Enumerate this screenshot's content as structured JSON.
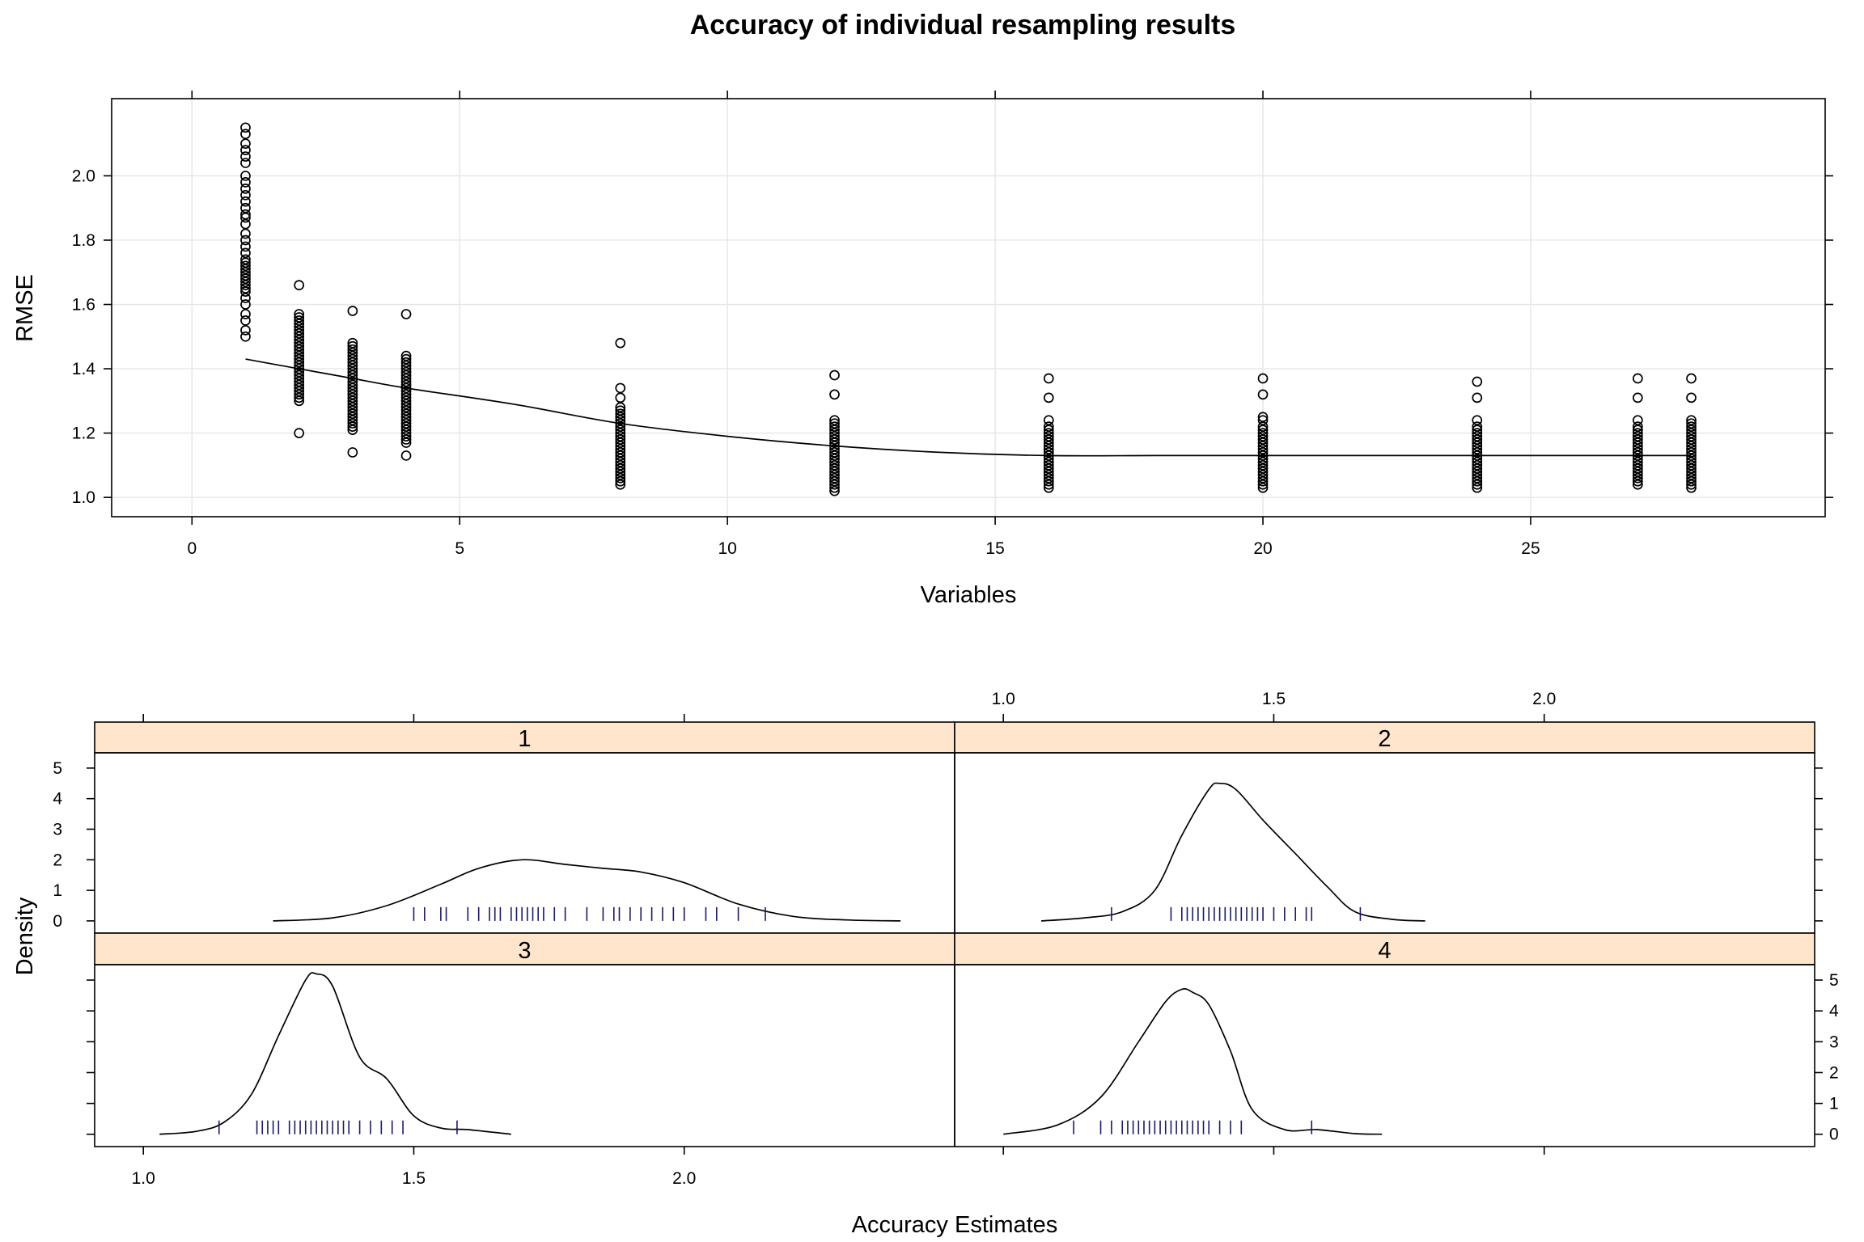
{
  "chart_data": [
    {
      "type": "scatter",
      "title": "Accuracy of individual resampling results",
      "xlabel": "Variables",
      "ylabel": "RMSE",
      "xlim": [
        -1.5,
        30.5
      ],
      "ylim": [
        0.94,
        2.24
      ],
      "xticks": [
        0,
        5,
        10,
        15,
        20,
        25
      ],
      "yticks": [
        1.0,
        1.2,
        1.4,
        1.6,
        1.8,
        2.0
      ],
      "ytick_labels": [
        "1.0",
        "1.2",
        "1.4",
        "1.6",
        "1.8",
        "2.0"
      ],
      "grid": true,
      "series": [
        {
          "x": 1,
          "y": [
            2.15,
            2.13,
            2.1,
            2.08,
            2.06,
            2.04,
            2.0,
            1.98,
            1.96,
            1.94,
            1.92,
            1.9,
            1.88,
            1.87,
            1.85,
            1.82,
            1.8,
            1.78,
            1.76,
            1.74,
            1.73,
            1.72,
            1.71,
            1.7,
            1.69,
            1.68,
            1.67,
            1.66,
            1.65,
            1.64,
            1.62,
            1.6,
            1.57,
            1.55,
            1.52,
            1.5
          ]
        },
        {
          "x": 2,
          "y": [
            1.66,
            1.57,
            1.56,
            1.55,
            1.54,
            1.53,
            1.52,
            1.51,
            1.5,
            1.49,
            1.48,
            1.47,
            1.46,
            1.45,
            1.44,
            1.43,
            1.42,
            1.41,
            1.4,
            1.39,
            1.38,
            1.37,
            1.36,
            1.35,
            1.34,
            1.33,
            1.32,
            1.31,
            1.3,
            1.2
          ]
        },
        {
          "x": 3,
          "y": [
            1.58,
            1.48,
            1.47,
            1.46,
            1.45,
            1.44,
            1.43,
            1.42,
            1.41,
            1.4,
            1.39,
            1.38,
            1.37,
            1.36,
            1.35,
            1.34,
            1.33,
            1.32,
            1.31,
            1.3,
            1.29,
            1.28,
            1.27,
            1.26,
            1.25,
            1.24,
            1.23,
            1.22,
            1.21,
            1.14
          ]
        },
        {
          "x": 4,
          "y": [
            1.57,
            1.44,
            1.43,
            1.42,
            1.41,
            1.4,
            1.39,
            1.38,
            1.37,
            1.36,
            1.35,
            1.34,
            1.33,
            1.32,
            1.31,
            1.3,
            1.29,
            1.28,
            1.27,
            1.26,
            1.25,
            1.24,
            1.23,
            1.22,
            1.21,
            1.2,
            1.19,
            1.18,
            1.17,
            1.13
          ]
        },
        {
          "x": 8,
          "y": [
            1.48,
            1.34,
            1.31,
            1.28,
            1.27,
            1.26,
            1.25,
            1.24,
            1.23,
            1.22,
            1.21,
            1.2,
            1.19,
            1.18,
            1.17,
            1.16,
            1.15,
            1.14,
            1.13,
            1.12,
            1.11,
            1.1,
            1.09,
            1.08,
            1.07,
            1.06,
            1.05,
            1.04
          ]
        },
        {
          "x": 12,
          "y": [
            1.38,
            1.32,
            1.24,
            1.23,
            1.22,
            1.21,
            1.2,
            1.19,
            1.18,
            1.17,
            1.16,
            1.15,
            1.14,
            1.13,
            1.12,
            1.11,
            1.1,
            1.09,
            1.08,
            1.07,
            1.06,
            1.05,
            1.04,
            1.03,
            1.02
          ]
        },
        {
          "x": 16,
          "y": [
            1.37,
            1.31,
            1.24,
            1.22,
            1.21,
            1.2,
            1.19,
            1.18,
            1.17,
            1.16,
            1.15,
            1.14,
            1.13,
            1.12,
            1.11,
            1.1,
            1.09,
            1.08,
            1.07,
            1.06,
            1.05,
            1.04,
            1.03
          ]
        },
        {
          "x": 20,
          "y": [
            1.37,
            1.32,
            1.25,
            1.24,
            1.22,
            1.21,
            1.2,
            1.19,
            1.18,
            1.17,
            1.16,
            1.15,
            1.14,
            1.13,
            1.12,
            1.11,
            1.1,
            1.09,
            1.08,
            1.07,
            1.06,
            1.05,
            1.04,
            1.03
          ]
        },
        {
          "x": 24,
          "y": [
            1.36,
            1.31,
            1.24,
            1.22,
            1.21,
            1.2,
            1.19,
            1.18,
            1.17,
            1.16,
            1.15,
            1.14,
            1.13,
            1.12,
            1.11,
            1.1,
            1.09,
            1.08,
            1.07,
            1.06,
            1.05,
            1.04,
            1.03
          ]
        },
        {
          "x": 27,
          "y": [
            1.37,
            1.31,
            1.24,
            1.22,
            1.21,
            1.2,
            1.19,
            1.18,
            1.17,
            1.16,
            1.15,
            1.14,
            1.13,
            1.12,
            1.11,
            1.1,
            1.09,
            1.08,
            1.07,
            1.06,
            1.05,
            1.04
          ]
        },
        {
          "x": 28,
          "y": [
            1.37,
            1.31,
            1.24,
            1.23,
            1.22,
            1.21,
            1.2,
            1.19,
            1.18,
            1.17,
            1.16,
            1.15,
            1.14,
            1.13,
            1.12,
            1.11,
            1.1,
            1.09,
            1.08,
            1.07,
            1.06,
            1.05,
            1.04,
            1.03
          ]
        }
      ],
      "smooth_line": {
        "x": [
          1,
          2,
          3,
          4,
          6,
          8,
          10,
          12,
          14,
          16,
          18,
          20,
          22,
          24,
          26,
          28
        ],
        "y": [
          1.43,
          1.4,
          1.37,
          1.34,
          1.29,
          1.23,
          1.19,
          1.16,
          1.14,
          1.13,
          1.13,
          1.13,
          1.13,
          1.13,
          1.13,
          1.13
        ]
      }
    },
    {
      "type": "area",
      "xlabel": "Accuracy Estimates",
      "ylabel": "Density",
      "xlim": [
        0.91,
        2.5
      ],
      "ylim": [
        -0.4,
        5.5
      ],
      "xticks": [
        1.0,
        1.5,
        2.0
      ],
      "xtick_labels": [
        "1.0",
        "1.5",
        "2.0"
      ],
      "yticks": [
        0,
        1,
        2,
        3,
        4,
        5
      ],
      "ytick_labels": [
        "0",
        "1",
        "2",
        "3",
        "4",
        "5"
      ],
      "panels": [
        {
          "strip": "1",
          "density": {
            "x": [
              1.24,
              1.35,
              1.45,
              1.55,
              1.62,
              1.7,
              1.78,
              1.85,
              1.92,
              2.0,
              2.1,
              2.2,
              2.3,
              2.4
            ],
            "y": [
              0.0,
              0.1,
              0.5,
              1.2,
              1.72,
              2.0,
              1.85,
              1.72,
              1.6,
              1.25,
              0.55,
              0.15,
              0.03,
              0.0
            ]
          },
          "rug": [
            1.5,
            1.52,
            1.55,
            1.56,
            1.6,
            1.62,
            1.64,
            1.65,
            1.66,
            1.68,
            1.69,
            1.7,
            1.71,
            1.72,
            1.73,
            1.74,
            1.76,
            1.78,
            1.82,
            1.85,
            1.87,
            1.88,
            1.9,
            1.92,
            1.94,
            1.96,
            1.98,
            2.0,
            2.04,
            2.06,
            2.1,
            2.15
          ]
        },
        {
          "strip": "2",
          "density": {
            "x": [
              1.07,
              1.15,
              1.22,
              1.28,
              1.33,
              1.38,
              1.4,
              1.43,
              1.48,
              1.54,
              1.6,
              1.65,
              1.72,
              1.78
            ],
            "y": [
              0.0,
              0.1,
              0.3,
              1.0,
              2.8,
              4.3,
              4.5,
              4.3,
              3.3,
              2.2,
              1.1,
              0.3,
              0.05,
              0.0
            ]
          },
          "rug": [
            1.2,
            1.31,
            1.33,
            1.34,
            1.35,
            1.36,
            1.37,
            1.38,
            1.39,
            1.4,
            1.41,
            1.42,
            1.43,
            1.44,
            1.45,
            1.46,
            1.47,
            1.48,
            1.5,
            1.52,
            1.54,
            1.56,
            1.57,
            1.66
          ]
        },
        {
          "strip": "3",
          "density": {
            "x": [
              1.03,
              1.1,
              1.15,
              1.2,
              1.25,
              1.3,
              1.32,
              1.35,
              1.4,
              1.45,
              1.5,
              1.55,
              1.6,
              1.68
            ],
            "y": [
              0.0,
              0.1,
              0.4,
              1.3,
              3.2,
              5.0,
              5.2,
              4.8,
              2.5,
              1.8,
              0.6,
              0.2,
              0.15,
              0.0
            ]
          },
          "rug": [
            1.14,
            1.21,
            1.22,
            1.23,
            1.24,
            1.25,
            1.27,
            1.28,
            1.29,
            1.3,
            1.31,
            1.32,
            1.33,
            1.34,
            1.35,
            1.36,
            1.37,
            1.38,
            1.4,
            1.42,
            1.44,
            1.46,
            1.48,
            1.58
          ]
        },
        {
          "strip": "4",
          "density": {
            "x": [
              1.0,
              1.1,
              1.18,
              1.25,
              1.3,
              1.33,
              1.35,
              1.38,
              1.42,
              1.46,
              1.52,
              1.58,
              1.65,
              1.7
            ],
            "y": [
              0.0,
              0.3,
              1.2,
              3.0,
              4.3,
              4.7,
              4.6,
              4.2,
              2.7,
              0.8,
              0.15,
              0.15,
              0.02,
              0.0
            ]
          },
          "rug": [
            1.13,
            1.18,
            1.2,
            1.22,
            1.23,
            1.24,
            1.25,
            1.26,
            1.27,
            1.28,
            1.29,
            1.3,
            1.31,
            1.32,
            1.33,
            1.34,
            1.35,
            1.36,
            1.37,
            1.38,
            1.4,
            1.42,
            1.44,
            1.57
          ]
        }
      ]
    }
  ]
}
